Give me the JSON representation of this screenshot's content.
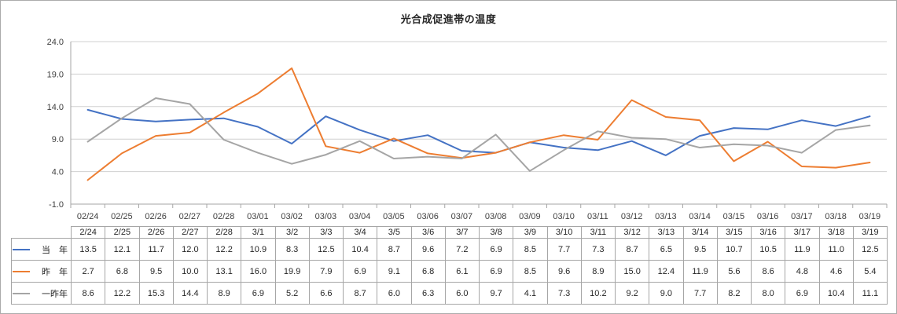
{
  "chart_data": {
    "type": "line",
    "title": "光合成促進帯の温度",
    "xlabel": "",
    "ylabel": "",
    "ylim": [
      -1.0,
      24.0
    ],
    "y_step": 5.0,
    "grid": true,
    "legend_position": "data-table-left",
    "y_axis_tick_labels": [
      "-1.0",
      "4.0",
      "9.0",
      "14.0",
      "19.0",
      "24.0"
    ],
    "x_axis_labels": [
      "02/24",
      "02/25",
      "02/26",
      "02/27",
      "02/28",
      "03/01",
      "03/02",
      "03/03",
      "03/04",
      "03/05",
      "03/06",
      "03/07",
      "03/08",
      "03/09",
      "03/10",
      "03/11",
      "03/12",
      "03/13",
      "03/14",
      "03/15",
      "03/16",
      "03/17",
      "03/18",
      "03/19"
    ],
    "table_header_labels": [
      "2/24",
      "2/25",
      "2/26",
      "2/27",
      "2/28",
      "3/1",
      "3/2",
      "3/3",
      "3/4",
      "3/5",
      "3/6",
      "3/7",
      "3/8",
      "3/9",
      "3/10",
      "3/11",
      "3/12",
      "3/13",
      "3/14",
      "3/15",
      "3/16",
      "3/17",
      "3/18",
      "3/19"
    ],
    "series": [
      {
        "key": "current-year",
        "name": "当　年",
        "color": "#4472C4",
        "values": [
          13.5,
          12.1,
          11.7,
          12.0,
          12.2,
          10.9,
          8.3,
          12.5,
          10.4,
          8.7,
          9.6,
          7.2,
          6.9,
          8.5,
          7.7,
          7.3,
          8.7,
          6.5,
          9.5,
          10.7,
          10.5,
          11.9,
          11.0,
          12.5
        ]
      },
      {
        "key": "last-year",
        "name": "昨　年",
        "color": "#ED7D31",
        "values": [
          2.7,
          6.8,
          9.5,
          10.0,
          13.1,
          16.0,
          19.9,
          7.9,
          6.9,
          9.1,
          6.8,
          6.1,
          6.9,
          8.5,
          9.6,
          8.9,
          15.0,
          12.4,
          11.9,
          5.6,
          8.6,
          4.8,
          4.6,
          5.4
        ]
      },
      {
        "key": "two-years-ago",
        "name": "一昨年",
        "color": "#A5A5A5",
        "values": [
          8.6,
          12.2,
          15.3,
          14.4,
          8.9,
          6.9,
          5.2,
          6.6,
          8.7,
          6.0,
          6.3,
          6.0,
          9.7,
          4.1,
          7.3,
          10.2,
          9.2,
          9.0,
          7.7,
          8.2,
          8.0,
          6.9,
          10.4,
          11.1
        ]
      }
    ],
    "colors": {
      "gridline": "#d0d0d0",
      "axis_line": "#a6a6a6",
      "axis_text": "#404040",
      "table_text": "#262626",
      "table_border": "#a6a6a6",
      "frame_border": "#ababab"
    }
  }
}
